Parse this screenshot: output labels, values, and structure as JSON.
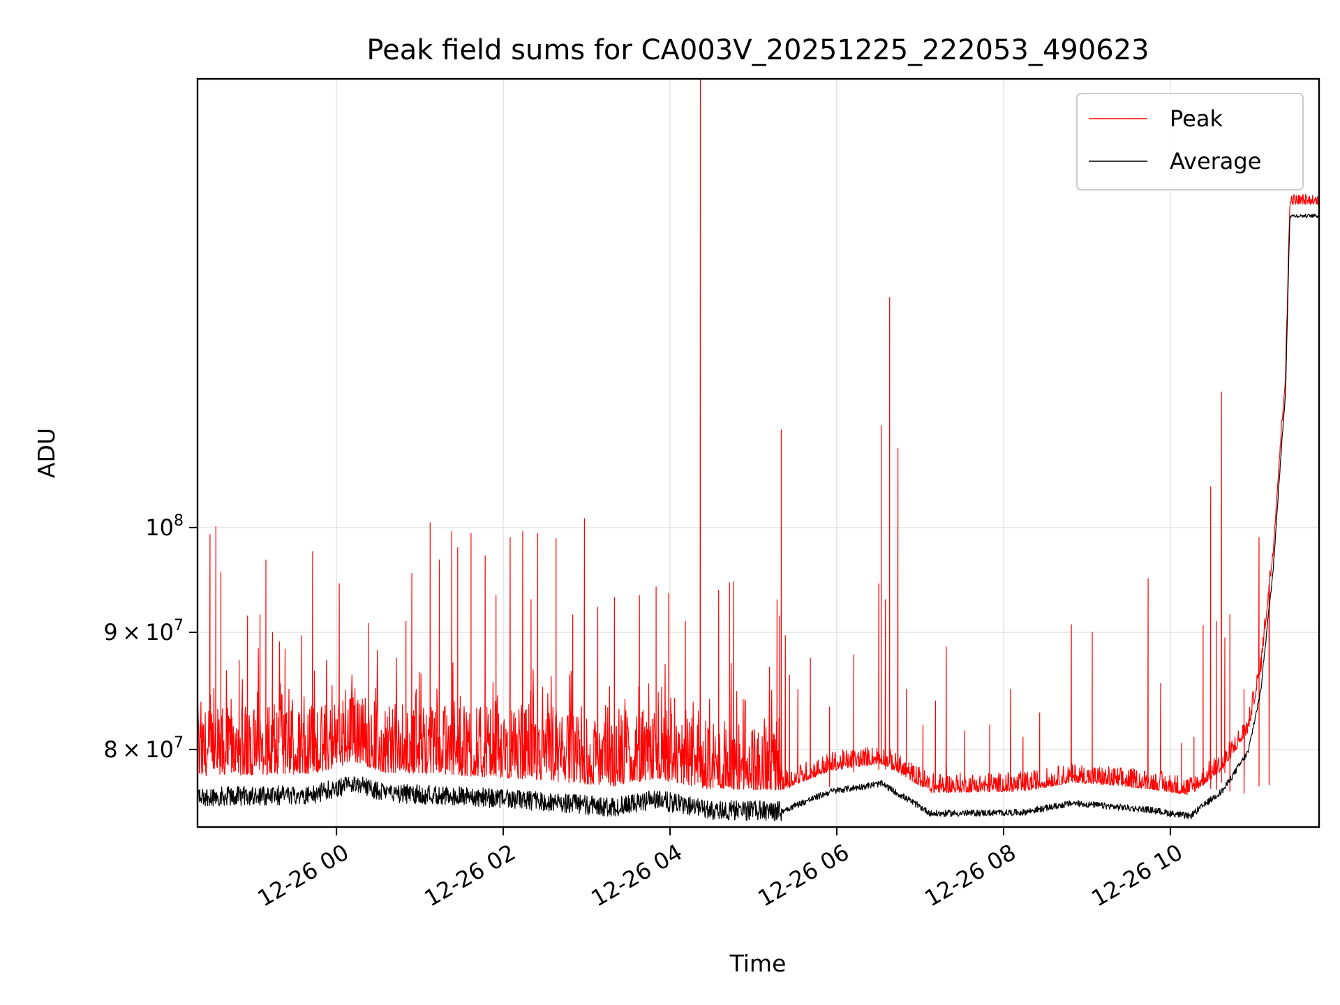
{
  "chart_data": {
    "type": "line",
    "title": "Peak field sums for CA003V_20251225_222053_490623",
    "xlabel": "Time",
    "ylabel": "ADU",
    "x_ticks": [
      "12-26 00",
      "12-26 02",
      "12-26 04",
      "12-26 06",
      "12-26 08",
      "12-26 10"
    ],
    "y_scale": "log",
    "y_ticks": [
      {
        "value": 80000000,
        "mantissa": "8",
        "base": "10",
        "exp": "7"
      },
      {
        "value": 90000000,
        "mantissa": "9",
        "base": "10",
        "exp": "7"
      },
      {
        "value": 100000000,
        "mantissa": "",
        "base": "10",
        "exp": "8"
      }
    ],
    "x_range": [
      "2025-12-25 22:20",
      "2025-12-26 11:47"
    ],
    "ylim": [
      74000000,
      157000000
    ],
    "grid": true,
    "legend": "top-right",
    "baseline": [
      [
        0.0,
        77500000
      ],
      [
        1.0,
        77600000
      ],
      [
        1.4,
        77700000
      ],
      [
        1.9,
        78600000
      ],
      [
        2.2,
        77800000
      ],
      [
        3.0,
        77600000
      ],
      [
        4.0,
        77200000
      ],
      [
        5.0,
        76700000
      ],
      [
        5.5,
        77300000
      ],
      [
        6.1,
        76500000
      ],
      [
        7.0,
        76400000
      ],
      [
        7.6,
        77900000
      ],
      [
        8.2,
        78500000
      ],
      [
        8.8,
        76200000
      ],
      [
        9.9,
        76300000
      ],
      [
        10.5,
        77000000
      ],
      [
        11.4,
        76500000
      ],
      [
        11.9,
        76000000
      ],
      [
        12.0,
        76500000
      ],
      [
        12.3,
        78000000
      ],
      [
        12.6,
        81000000
      ],
      [
        12.75,
        86000000
      ],
      [
        12.9,
        97000000
      ],
      [
        13.05,
        116000000
      ],
      [
        13.1,
        138000000
      ]
    ],
    "average_offset": -1200000,
    "series": [
      {
        "name": "Peak",
        "color": "#ff0000",
        "spikes": [
          [
            0.15,
            99300000
          ],
          [
            0.22,
            100100000
          ],
          [
            0.28,
            95600000
          ],
          [
            0.5,
            87500000
          ],
          [
            0.6,
            91500000
          ],
          [
            0.75,
            91600000
          ],
          [
            0.82,
            96800000
          ],
          [
            0.9,
            90000000
          ],
          [
            1.05,
            88500000
          ],
          [
            1.25,
            89700000
          ],
          [
            1.38,
            97600000
          ],
          [
            1.7,
            94500000
          ],
          [
            2.05,
            90800000
          ],
          [
            2.5,
            91000000
          ],
          [
            2.57,
            95500000
          ],
          [
            2.79,
            100500000
          ],
          [
            2.9,
            96800000
          ],
          [
            3.05,
            99600000
          ],
          [
            3.12,
            98000000
          ],
          [
            3.28,
            99400000
          ],
          [
            3.45,
            97200000
          ],
          [
            3.58,
            93400000
          ],
          [
            3.75,
            99000000
          ],
          [
            3.9,
            99600000
          ],
          [
            4.0,
            93000000
          ],
          [
            4.08,
            99400000
          ],
          [
            4.3,
            98900000
          ],
          [
            4.5,
            91600000
          ],
          [
            4.64,
            100900000
          ],
          [
            4.8,
            92300000
          ],
          [
            5.0,
            93200000
          ],
          [
            5.3,
            93400000
          ],
          [
            5.5,
            94200000
          ],
          [
            5.65,
            93600000
          ],
          [
            5.85,
            91000000
          ],
          [
            6.03,
            157000000
          ],
          [
            6.25,
            93900000
          ],
          [
            6.38,
            94600000
          ],
          [
            6.43,
            94700000
          ],
          [
            6.57,
            84000000
          ],
          [
            6.95,
            93000000
          ],
          [
            6.98,
            91500000
          ],
          [
            7.0,
            110300000
          ],
          [
            7.05,
            89700000
          ],
          [
            7.1,
            86200000
          ],
          [
            7.2,
            85000000
          ],
          [
            7.35,
            87700000
          ],
          [
            7.58,
            83500000
          ],
          [
            7.87,
            88000000
          ],
          [
            8.17,
            94500000
          ],
          [
            8.2,
            110800000
          ],
          [
            8.25,
            93000000
          ],
          [
            8.3,
            126000000
          ],
          [
            8.4,
            108300000
          ],
          [
            8.5,
            85000000
          ],
          [
            8.7,
            82000000
          ],
          [
            8.85,
            84000000
          ],
          [
            8.98,
            88700000
          ],
          [
            9.2,
            81500000
          ],
          [
            9.5,
            82000000
          ],
          [
            9.75,
            85000000
          ],
          [
            9.9,
            81000000
          ],
          [
            10.1,
            83000000
          ],
          [
            10.48,
            90700000
          ],
          [
            10.73,
            90000000
          ],
          [
            11.4,
            95000000
          ],
          [
            11.55,
            85500000
          ],
          [
            11.8,
            80500000
          ],
          [
            11.95,
            81000000
          ],
          [
            12.06,
            90600000
          ],
          [
            12.15,
            104200000
          ],
          [
            12.22,
            91000000
          ],
          [
            12.28,
            114600000
          ],
          [
            12.32,
            89500000
          ],
          [
            12.38,
            91600000
          ],
          [
            12.55,
            85000000
          ],
          [
            12.73,
            99000000
          ],
          [
            12.85,
            87800000
          ]
        ]
      },
      {
        "name": "Average",
        "color": "#000000",
        "spikes": []
      }
    ]
  }
}
